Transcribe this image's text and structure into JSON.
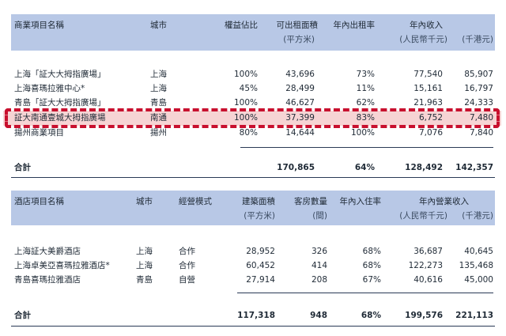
{
  "commercial": {
    "headers": {
      "name": "商業項目名稱",
      "city": "城市",
      "interest": "權益佔比",
      "area": "可出租面積",
      "area_unit": "(平方米)",
      "occupancy": "年內出租率",
      "revenue": "年內收入",
      "rmb_unit": "(人民幣千元)",
      "hkd_unit": "(千港元)"
    },
    "rows": [
      {
        "name": "上海「証大大拇指廣場」",
        "city": "上海",
        "interest": "100%",
        "area": "43,696",
        "occupancy": "73%",
        "rmb": "77,540",
        "hkd": "85,907"
      },
      {
        "name": "上海喜瑪拉雅中心*",
        "city": "上海",
        "interest": "45%",
        "area": "28,499",
        "occupancy": "11%",
        "rmb": "15,161",
        "hkd": "16,797"
      },
      {
        "name": "青島「証大大拇指廣場」",
        "city": "青島",
        "interest": "100%",
        "area": "46,627",
        "occupancy": "62%",
        "rmb": "21,963",
        "hkd": "24,333"
      },
      {
        "name": "証大南通壹城大拇指廣場",
        "city": "南通",
        "interest": "100%",
        "area": "37,399",
        "occupancy": "83%",
        "rmb": "6,752",
        "hkd": "7,480"
      },
      {
        "name": "揚州商業項目",
        "city": "揚州",
        "interest": "80%",
        "area": "14,644",
        "occupancy": "100%",
        "rmb": "7,076",
        "hkd": "7,840"
      }
    ],
    "total": {
      "label": "合計",
      "area": "170,865",
      "occupancy": "64%",
      "rmb": "128,492",
      "hkd": "142,357"
    }
  },
  "hotel": {
    "headers": {
      "name": "酒店項目名稱",
      "city": "城市",
      "mode": "經營模式",
      "area": "建築面積",
      "area_unit": "(平方米)",
      "rooms": "客房數量",
      "rooms_unit": "(間)",
      "occupancy": "年內入住率",
      "revenue": "年內營業收入",
      "rmb_unit": "(人民幣千元)",
      "hkd_unit": "(千港元)"
    },
    "rows": [
      {
        "name": "上海証大美爵酒店",
        "city": "上海",
        "mode": "合作",
        "area": "28,952",
        "rooms": "326",
        "occupancy": "68%",
        "rmb": "36,687",
        "hkd": "40,645"
      },
      {
        "name": "上海卓美亞喜瑪拉雅酒店*",
        "city": "上海",
        "mode": "合作",
        "area": "60,452",
        "rooms": "414",
        "occupancy": "68%",
        "rmb": "122,273",
        "hkd": "135,468"
      },
      {
        "name": "青島喜瑪拉雅酒店",
        "city": "青島",
        "mode": "自營",
        "area": "27,914",
        "rooms": "208",
        "occupancy": "67%",
        "rmb": "40,616",
        "hkd": "45,000"
      }
    ],
    "total": {
      "label": "合計",
      "area": "117,318",
      "rooms": "948",
      "occupancy": "68%",
      "rmb": "199,576",
      "hkd": "221,113"
    }
  },
  "highlight_color": "#c8102e"
}
